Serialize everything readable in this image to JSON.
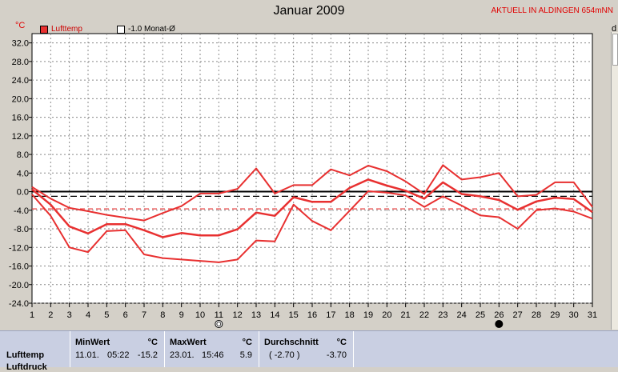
{
  "header": {
    "title": "Januar 2009",
    "station": "AKTUELL IN ALDINGEN 654mNN",
    "unit": "°C",
    "right_label": "d"
  },
  "legend": [
    {
      "label": "Lufttemp",
      "color": "#e83030",
      "filled": true
    },
    {
      "label": "-1.0 Monat-Ø",
      "color": "#000000",
      "filled": false
    }
  ],
  "chart_data": {
    "type": "line",
    "title": "Januar 2009",
    "ylabel": "°C",
    "x": [
      1,
      2,
      3,
      4,
      5,
      6,
      7,
      8,
      9,
      10,
      11,
      12,
      13,
      14,
      15,
      16,
      17,
      18,
      19,
      20,
      21,
      22,
      23,
      24,
      25,
      26,
      27,
      28,
      29,
      30,
      31
    ],
    "ylim": [
      -24,
      34
    ],
    "yticks": [
      32.0,
      28.0,
      24.0,
      20.0,
      16.0,
      12.0,
      8.0,
      4.0,
      0.0,
      -4.0,
      -8.0,
      -12.0,
      -16.0,
      -20.0,
      -24.0
    ],
    "ytick_labels": [
      "32.0",
      "28.0",
      "24.0",
      "20.0",
      "16.0",
      "12.0",
      "8.0",
      "4.0",
      "0.0",
      "-4.0",
      "-8.0",
      "-12.0",
      "-16.0",
      "-20.0",
      "-24.0"
    ],
    "grid": true,
    "reference_lines": [
      {
        "y": 0.0,
        "style": "solid",
        "color": "#000000"
      },
      {
        "y": -1.0,
        "style": "dashed",
        "color": "#000000"
      },
      {
        "y": -3.7,
        "style": "dashed",
        "color": "#e83030"
      }
    ],
    "series": [
      {
        "values": [
          1.0,
          -1.5,
          -3.5,
          -4.2,
          -5.0,
          -5.6,
          -6.2,
          -4.6,
          -3.1,
          -0.4,
          -0.4,
          0.6,
          5.0,
          -0.4,
          1.4,
          1.4,
          4.8,
          3.5,
          5.6,
          4.4,
          2.2,
          -0.5,
          5.7,
          2.6,
          3.1,
          4.0,
          -1.0,
          -0.7,
          2.0,
          2.0,
          -3.3
        ],
        "color": "#e83030",
        "width": 2
      },
      {
        "values": [
          0.5,
          -2.8,
          -7.5,
          -9.0,
          -7.0,
          -7.0,
          -8.3,
          -9.8,
          -8.9,
          -9.4,
          -9.4,
          -8.1,
          -4.5,
          -5.2,
          -1.2,
          -2.2,
          -2.2,
          0.8,
          2.6,
          1.3,
          0.2,
          -1.5,
          2.0,
          -0.5,
          -1.0,
          -1.8,
          -3.9,
          -2.1,
          -1.3,
          -1.6,
          -4.4
        ],
        "color": "#e83030",
        "width": 2.5
      },
      {
        "values": [
          -0.6,
          -5.2,
          -12.0,
          -13.0,
          -8.5,
          -8.3,
          -13.5,
          -14.3,
          -14.6,
          -14.9,
          -15.2,
          -14.6,
          -10.5,
          -10.7,
          -2.8,
          -6.3,
          -8.3,
          -4.1,
          0.1,
          -0.2,
          -0.8,
          -3.3,
          -1.0,
          -3.0,
          -5.1,
          -5.5,
          -8.0,
          -4.0,
          -3.6,
          -4.3,
          -5.8
        ],
        "color": "#e83030",
        "width": 2
      }
    ],
    "markers": [
      {
        "x": 11,
        "symbol": "new-moon-outline"
      },
      {
        "x": 26,
        "symbol": "full-moon-filled"
      }
    ]
  },
  "summary": {
    "row_label": "Lufttemp",
    "row_label_partial": "Luftdruck",
    "min": {
      "header": "MinWert",
      "unit": "°C",
      "date": "11.01.",
      "time": "05:22",
      "value": "-15.2"
    },
    "max": {
      "header": "MaxWert",
      "unit": "°C",
      "date": "23.01.",
      "time": "15:46",
      "value": "5.9"
    },
    "avg": {
      "header": "Durchschnitt",
      "unit": "°C",
      "ref": "( -2.70 )",
      "value": "-3.70"
    }
  }
}
